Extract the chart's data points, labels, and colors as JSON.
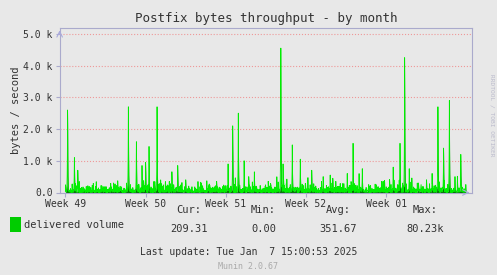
{
  "title": "Postfix bytes throughput - by month",
  "ylabel": "bytes / second",
  "xtick_labels": [
    "Week 49",
    "Week 50",
    "Week 51",
    "Week 52",
    "Week 01"
  ],
  "ylim": [
    0,
    5000
  ],
  "yticks": [
    0,
    1000,
    2000,
    3000,
    4000,
    5000
  ],
  "ytick_labels": [
    "0.0",
    "1.0 k",
    "2.0 k",
    "3.0 k",
    "4.0 k",
    "5.0 k"
  ],
  "bg_color": "#e8e8e8",
  "plot_bg_color": "#e8e8e8",
  "grid_color": "#ee9999",
  "line_color": "#00ee00",
  "fill_color": "#007700",
  "legend_label": "delivered volume",
  "legend_color": "#00cc00",
  "stats_cur": "209.31",
  "stats_min": "0.00",
  "stats_avg": "351.67",
  "stats_max": "80.23k",
  "last_update": "Last update: Tue Jan  7 15:00:53 2025",
  "munin_version": "Munin 2.0.67",
  "watermark": "RRDTOOL / TOBI OETIKER",
  "spine_color": "#aaaacc",
  "tick_color": "#888888",
  "text_color": "#333333",
  "arrow_color": "#aaaadd"
}
